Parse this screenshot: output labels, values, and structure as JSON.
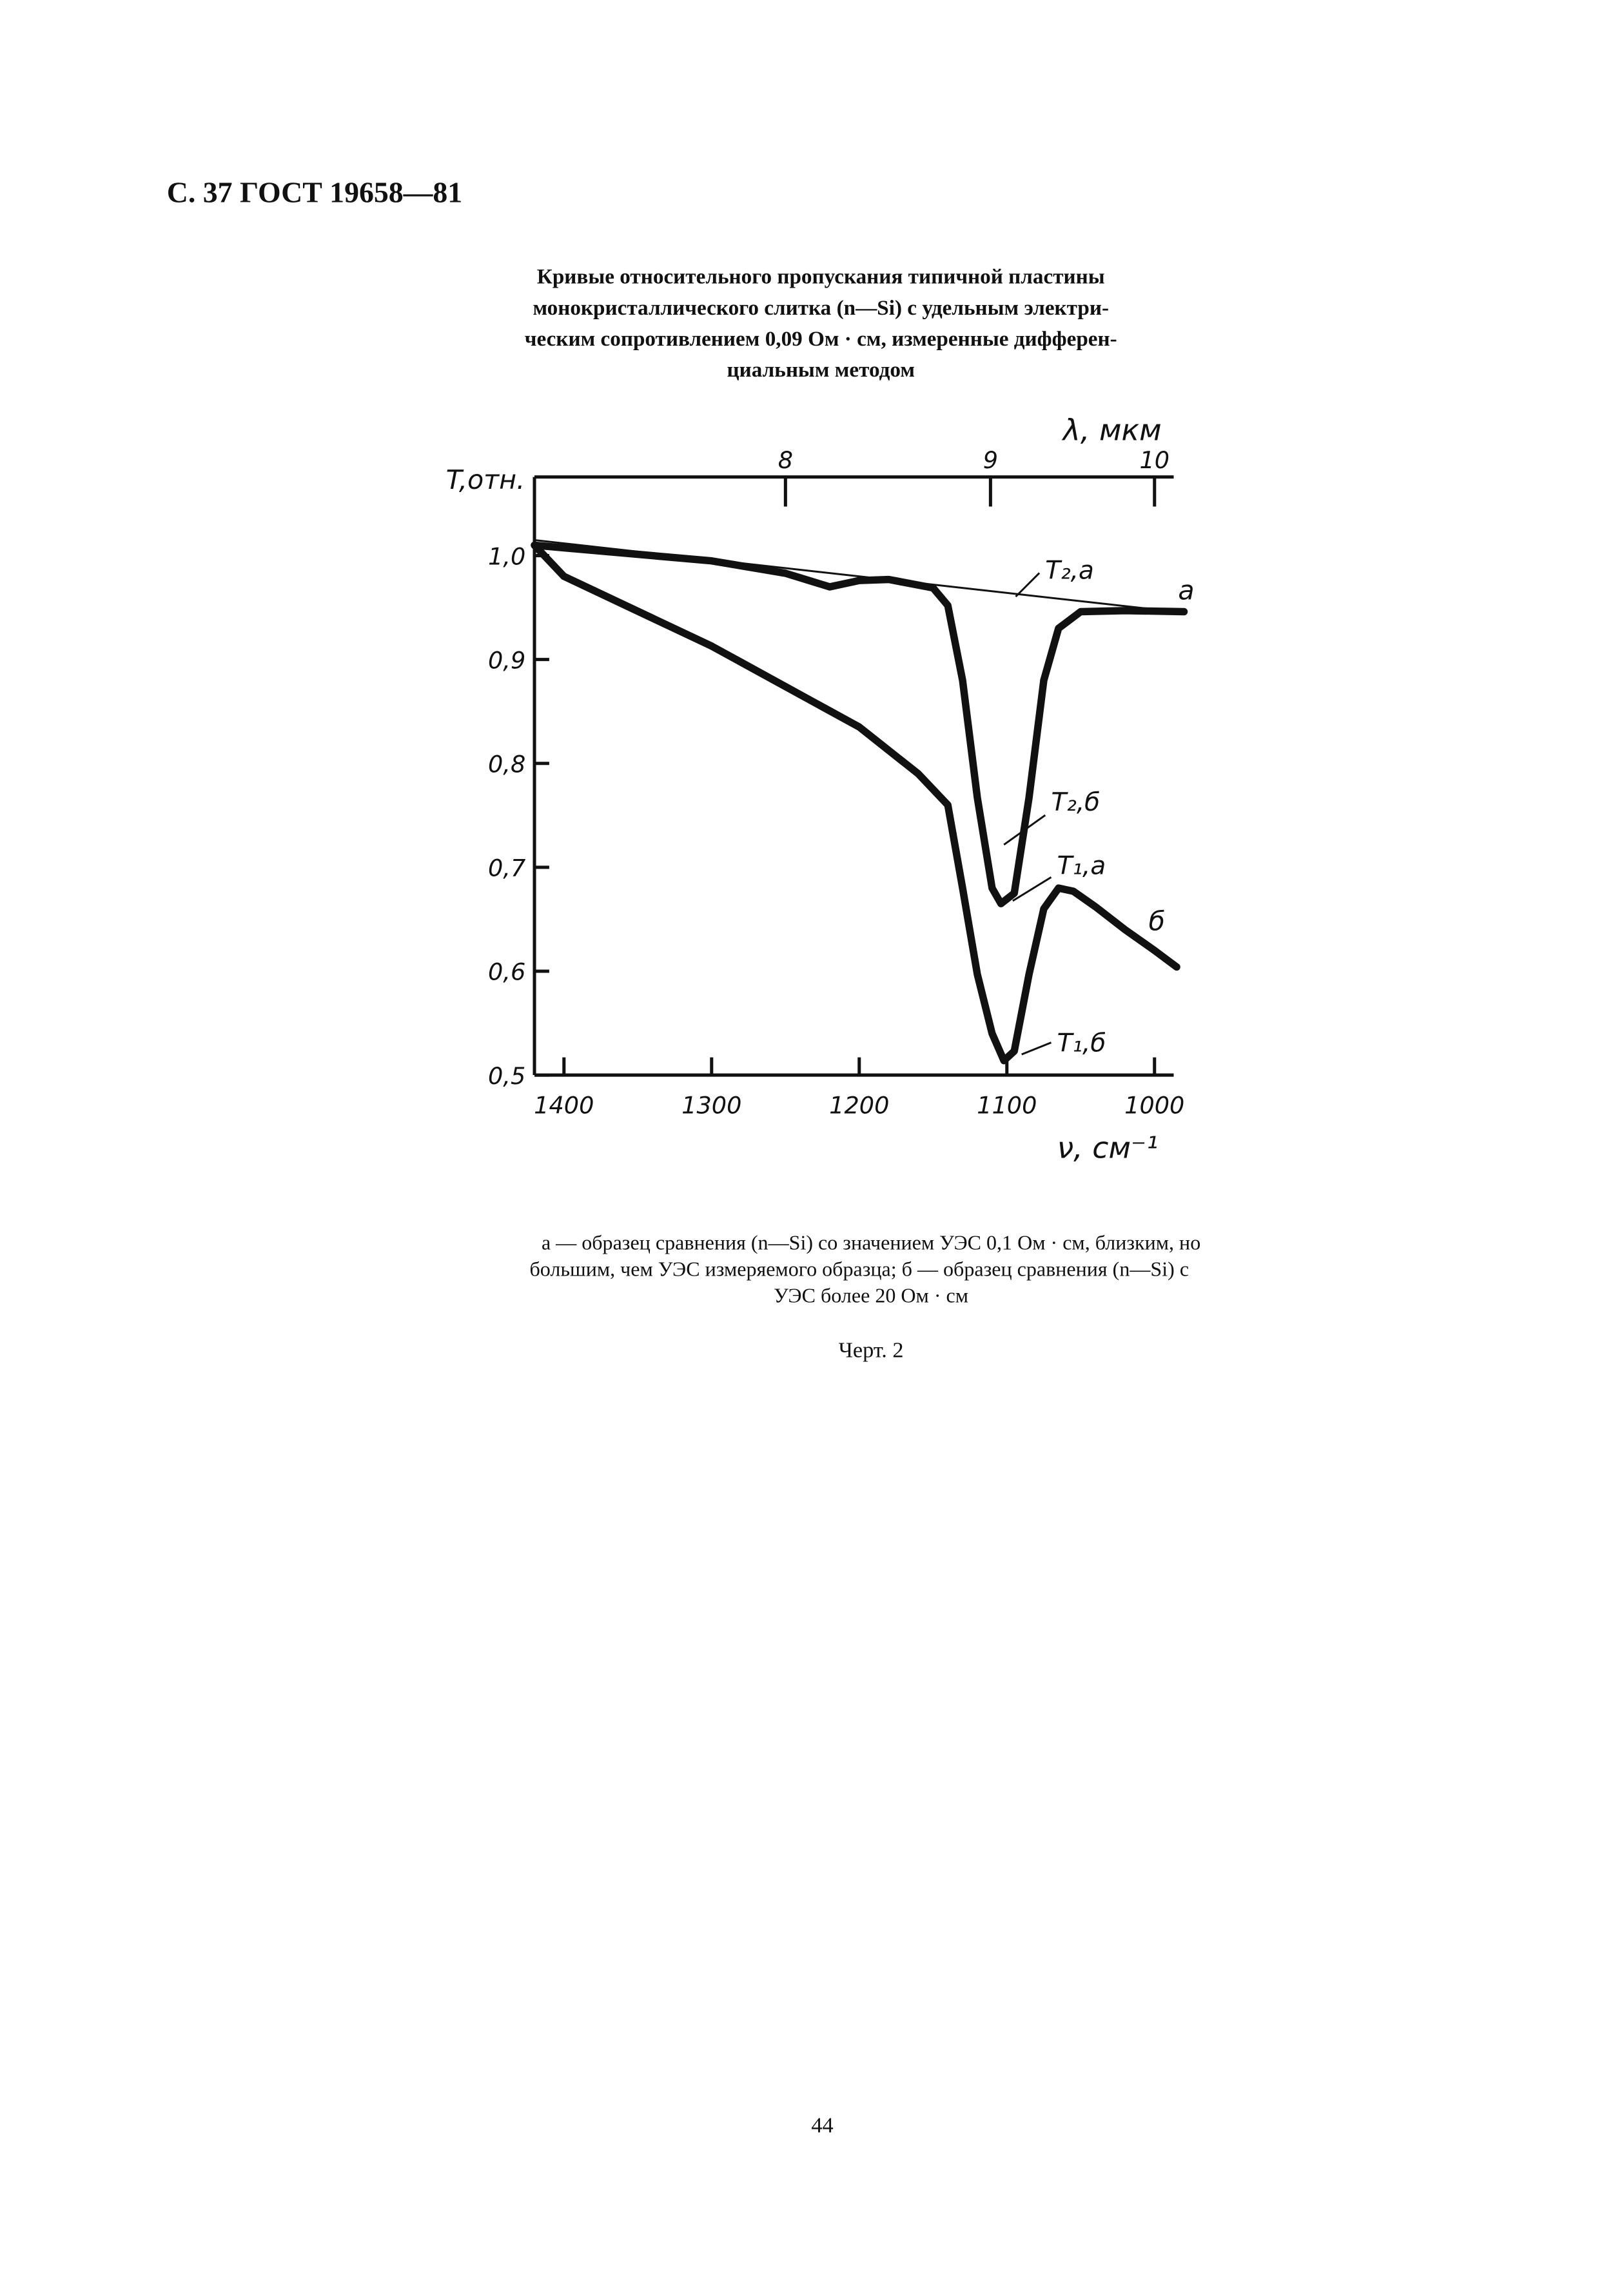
{
  "header": "С. 37 ГОСТ 19658—81",
  "title_lines": [
    "Кривые относительного пропускания типичной пластины",
    "монокристаллического слитка (n—Si) с  удельным электри-",
    "ческим сопротивлением 0,09 Ом · см, измеренные  дифферен-",
    "циальным методом"
  ],
  "chart_data": {
    "type": "line",
    "x_label": "ν, см⁻¹",
    "x2_label": "λ, мкм",
    "y_label": "T,отн.",
    "xlim": [
      1420,
      980
    ],
    "xticks": [
      1400,
      1300,
      1200,
      1100,
      1000
    ],
    "x2lim": [
      7.042,
      10.204
    ],
    "x2ticks": [
      8,
      9,
      10
    ],
    "x2_scale": "reciprocal",
    "ylim": [
      0.5,
      1.07
    ],
    "yticks": [
      {
        "value": 0.5,
        "label": "0,5"
      },
      {
        "value": 0.6,
        "label": "0,6"
      },
      {
        "value": 0.7,
        "label": "0,7"
      },
      {
        "value": 0.8,
        "label": "0,8"
      },
      {
        "value": 0.9,
        "label": "0,9"
      },
      {
        "value": 1.0,
        "label": "1,0"
      }
    ],
    "series": [
      {
        "name": "a",
        "color": "#111111",
        "linewidth": 5,
        "x": [
          1420,
          1300,
          1250,
          1220,
          1200,
          1180,
          1150,
          1140,
          1130,
          1120,
          1110,
          1104,
          1095,
          1085,
          1075,
          1065,
          1050,
          1020,
          980
        ],
        "values": [
          1.01,
          0.995,
          0.983,
          0.97,
          0.976,
          0.977,
          0.969,
          0.952,
          0.88,
          0.767,
          0.68,
          0.665,
          0.675,
          0.767,
          0.88,
          0.93,
          0.946,
          0.947,
          0.946
        ]
      },
      {
        "name": "б",
        "color": "#111111",
        "linewidth": 5,
        "x": [
          1420,
          1400,
          1300,
          1200,
          1160,
          1140,
          1130,
          1120,
          1110,
          1102,
          1095,
          1085,
          1075,
          1065,
          1055,
          1040,
          1020,
          1000,
          985
        ],
        "values": [
          1.01,
          0.98,
          0.913,
          0.835,
          0.79,
          0.76,
          0.68,
          0.597,
          0.54,
          0.514,
          0.523,
          0.597,
          0.66,
          0.68,
          0.677,
          0.662,
          0.64,
          0.62,
          0.604
        ]
      },
      {
        "color": "#111111",
        "linewidth": 1.3,
        "x": [
          1420,
          980
        ],
        "values": [
          1.015,
          0.945
        ]
      }
    ],
    "annotations": [
      "T₂,a",
      "T₂,б",
      "T₁,a",
      "T₁,б"
    ]
  },
  "note_lines": [
    "а — образец  сравнения  (n—Si)  со  значением УЭС 0,1 Ом · см, близким, но",
    "большим, чем УЭС измеряемого образца; б — образец сравнения (n—Si)  с",
    "УЭС более 20 Ом · см"
  ],
  "figure_label": "Черт. 2",
  "page_number": "44"
}
